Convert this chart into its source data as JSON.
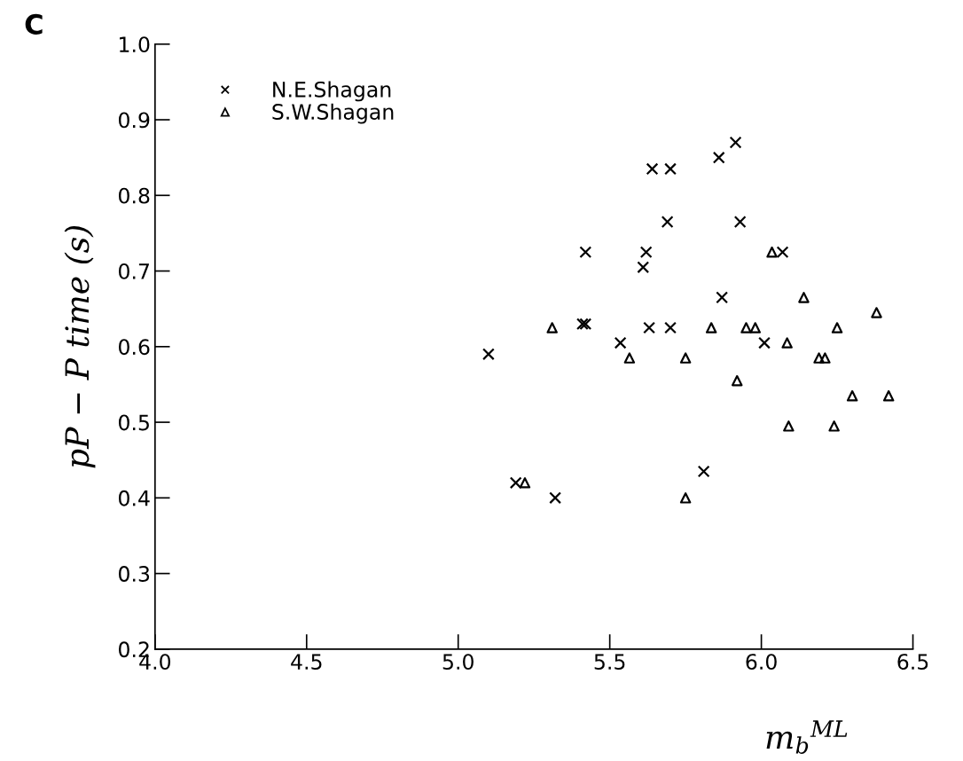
{
  "chart_data": {
    "type": "scatter",
    "title": "C",
    "xlabel": "m$_{b}$$^{ML}$",
    "ylabel": "pP − P time (s)",
    "xlim": [
      4.0,
      6.5
    ],
    "xticks": [
      {
        "value": 4.0,
        "label": "4.0"
      },
      4.5,
      {
        "value": 5.0,
        "label": "5.0"
      },
      5.5,
      {
        "value": 6.0,
        "label": "6.0"
      },
      6.5
    ],
    "ylim": [
      0.2,
      1.0
    ],
    "yticks": [
      0.2,
      0.3,
      0.4,
      0.5,
      0.6,
      0.7,
      0.8,
      0.9,
      {
        "value": 1.0,
        "label": "1.0"
      }
    ],
    "grid": false,
    "legend": "top left",
    "series": [
      {
        "name": "N.E.Shagan",
        "color": "#000000",
        "marker": "cross",
        "x": [
          5.1,
          5.19,
          5.32,
          5.41,
          5.42,
          5.42,
          5.535,
          5.61,
          5.62,
          5.63,
          5.64,
          5.69,
          5.7,
          5.7,
          5.81,
          5.86,
          5.87,
          5.915,
          5.93,
          6.01,
          6.07
        ],
        "values": [
          0.59,
          0.42,
          0.4,
          0.63,
          0.63,
          0.725,
          0.605,
          0.705,
          0.725,
          0.625,
          0.835,
          0.765,
          0.835,
          0.625,
          0.435,
          0.85,
          0.665,
          0.87,
          0.765,
          0.605,
          0.725
        ]
      },
      {
        "name": "S.W.Shagan",
        "color": "#000000",
        "marker": "triangle",
        "x": [
          5.22,
          5.31,
          5.565,
          5.75,
          5.75,
          5.835,
          5.92,
          5.95,
          5.98,
          6.035,
          6.085,
          6.09,
          6.14,
          6.19,
          6.21,
          6.24,
          6.25,
          6.3,
          6.38,
          6.42
        ],
        "values": [
          0.42,
          0.625,
          0.585,
          0.585,
          0.4,
          0.625,
          0.555,
          0.625,
          0.625,
          0.725,
          0.605,
          0.495,
          0.665,
          0.585,
          0.585,
          0.495,
          0.625,
          0.535,
          0.645,
          0.535
        ]
      }
    ]
  }
}
